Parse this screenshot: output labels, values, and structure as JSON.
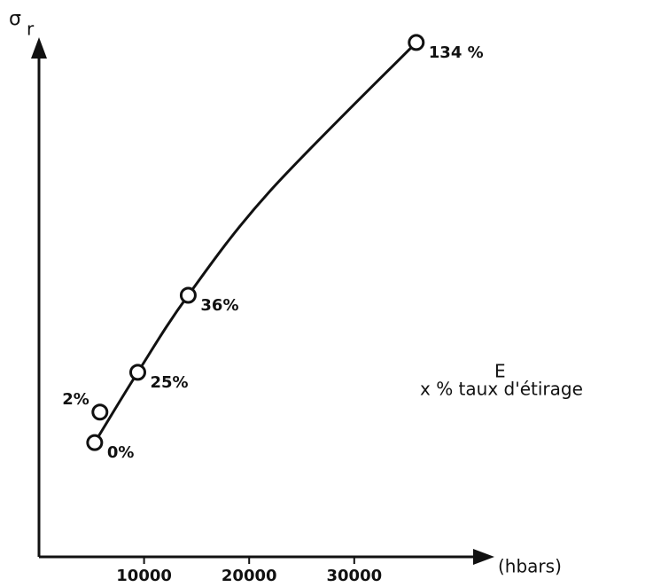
{
  "chart_data": {
    "type": "scatter",
    "y_label": "σ",
    "y_label_sub": "r",
    "x_label": "E",
    "x_unit": "(hbars)",
    "annotation": "x % taux d'étirage",
    "xlim": [
      0,
      43000
    ],
    "xticks": [
      10000,
      20000,
      30000
    ],
    "ylim": [
      0,
      100
    ],
    "color": "#111111",
    "points": {
      "x": [
        5300,
        5800,
        9400,
        14200,
        35900
      ],
      "y": [
        22.1,
        28,
        35.7,
        50.6,
        99.5
      ],
      "labels": [
        "0%",
        "2%",
        "25%",
        "36%",
        "134 %"
      ]
    },
    "curve": {
      "x": [
        5300,
        9400,
        14200,
        22000,
        35900
      ],
      "y": [
        22.1,
        35.7,
        50.6,
        70.8,
        99.5
      ]
    }
  }
}
